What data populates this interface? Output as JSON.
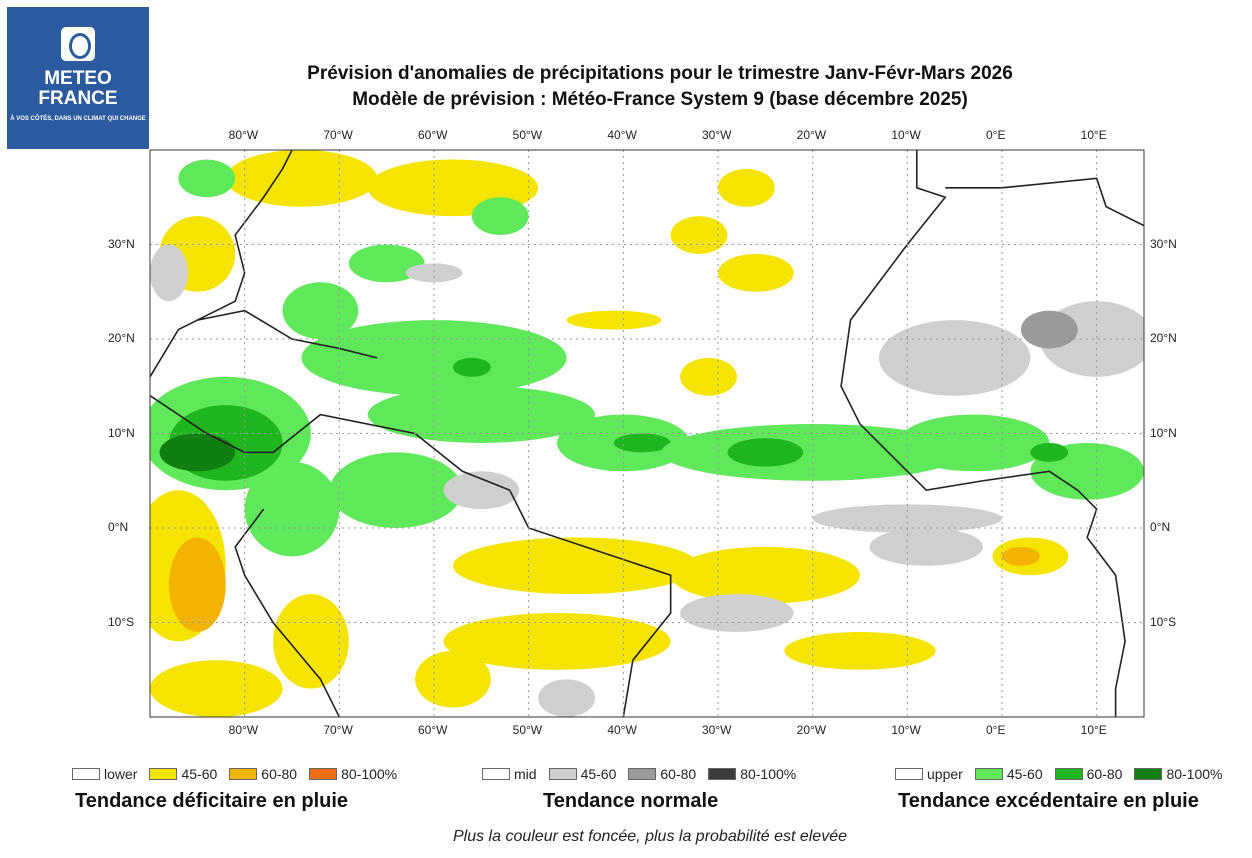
{
  "logo": {
    "line1": "METEO",
    "line2": "FRANCE",
    "tagline": "À VOS CÔTÉS, DANS UN CLIMAT QUI CHANGE"
  },
  "title": {
    "line1": "Prévision d'anomalies de précipitations pour le trimestre Janv-Févr-Mars 2026",
    "line2": "Modèle de prévision : Météo-France System 9 (base décembre 2025)"
  },
  "map": {
    "lon_ticks": [
      "80°W",
      "70°W",
      "60°W",
      "50°W",
      "40°W",
      "30°W",
      "20°W",
      "10°W",
      "0°E",
      "10°E"
    ],
    "lat_ticks": [
      "30°N",
      "20°N",
      "10°N",
      "0°N",
      "10°S"
    ],
    "extent": {
      "lon": [
        -90,
        15
      ],
      "lat": [
        -20,
        40
      ]
    }
  },
  "legend": [
    {
      "title": "Tendance déficitaire en pluie",
      "items": [
        {
          "label": "lower",
          "color": "#ffffff"
        },
        {
          "label": "45-60",
          "color": "#f5e400"
        },
        {
          "label": "60-80",
          "color": "#f2b400"
        },
        {
          "label": "80-100%",
          "color": "#f07010"
        }
      ]
    },
    {
      "title": "Tendance normale",
      "items": [
        {
          "label": "mid",
          "color": "#ffffff"
        },
        {
          "label": "45-60",
          "color": "#cfcfcf"
        },
        {
          "label": "60-80",
          "color": "#9a9a9a"
        },
        {
          "label": "80-100%",
          "color": "#3c3c3c"
        }
      ]
    },
    {
      "title": "Tendance excédentaire en pluie",
      "items": [
        {
          "label": "upper",
          "color": "#ffffff"
        },
        {
          "label": "45-60",
          "color": "#5ee85a"
        },
        {
          "label": "60-80",
          "color": "#1fb51f"
        },
        {
          "label": "80-100%",
          "color": "#117e11"
        }
      ]
    }
  ],
  "note": "Plus la couleur est foncée, plus la probabilité est elevée"
}
